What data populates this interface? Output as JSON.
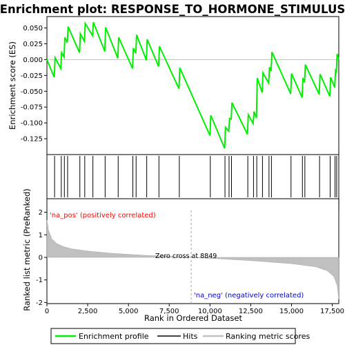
{
  "title": "Enrichment plot: RESPONSE_TO_HORMONE_STIMULUS",
  "colors": {
    "enrichment_line": "#00ee00",
    "hits": "#000000",
    "metric_fill": "#c0c0c0",
    "pos_label": "#ff0000",
    "neg_label": "#0000cd",
    "zero_cross_line": "#a0a0a0"
  },
  "legend": {
    "items": [
      {
        "label": "Enrichment profile",
        "color": "#00ee00"
      },
      {
        "label": "Hits",
        "color": "#000000"
      },
      {
        "label": "Ranking metric scores",
        "color": "#c0c0c0"
      }
    ]
  },
  "chart_data": [
    {
      "type": "line",
      "name": "enrichment-profile-panel",
      "ylabel": "Enrichment score (ES)",
      "ylim": [
        -0.15,
        0.068
      ],
      "xlim": [
        0,
        17900
      ],
      "yticks": [
        0.05,
        0.025,
        0.0,
        -0.025,
        -0.05,
        -0.075,
        -0.1,
        -0.125
      ],
      "ytick_labels": [
        "0.050",
        "0.025",
        "0.000",
        "-0.025",
        "-0.050",
        "-0.075",
        "-0.100",
        "-0.125"
      ],
      "grid": false,
      "series": [
        {
          "name": "Enrichment profile",
          "x": [
            0,
            450,
            500,
            850,
            900,
            1050,
            1100,
            1250,
            1300,
            2000,
            2050,
            2300,
            2350,
            2800,
            2850,
            3550,
            3600,
            4350,
            4400,
            5250,
            5300,
            5450,
            5500,
            6100,
            6150,
            6850,
            6900,
            8100,
            8150,
            10000,
            10050,
            10900,
            10950,
            11150,
            11200,
            11300,
            11350,
            12300,
            12350,
            12650,
            12700,
            12850,
            12900,
            13200,
            13250,
            13600,
            13650,
            13750,
            13800,
            14950,
            15000,
            15650,
            15700,
            15800,
            15850,
            16700,
            16750,
            17350,
            17400,
            17650,
            17700,
            17750,
            17800,
            17900
          ],
          "y": [
            0.0,
            -0.028,
            0.003,
            -0.014,
            0.011,
            0.004,
            0.035,
            0.027,
            0.052,
            0.011,
            0.041,
            0.029,
            0.057,
            0.038,
            0.059,
            0.013,
            0.051,
            0.002,
            0.035,
            -0.014,
            0.018,
            0.01,
            0.039,
            -0.001,
            0.032,
            -0.011,
            0.021,
            -0.046,
            -0.013,
            -0.12,
            -0.088,
            -0.14,
            -0.107,
            -0.113,
            -0.093,
            -0.094,
            -0.068,
            -0.118,
            -0.087,
            -0.101,
            -0.082,
            -0.092,
            -0.029,
            -0.052,
            -0.021,
            -0.037,
            -0.012,
            -0.018,
            0.012,
            -0.054,
            -0.022,
            -0.06,
            -0.029,
            -0.036,
            -0.008,
            -0.055,
            -0.023,
            -0.058,
            -0.028,
            -0.044,
            -0.017,
            -0.019,
            0.009,
            0.0
          ]
        }
      ]
    },
    {
      "type": "scatter",
      "name": "hits-panel",
      "series": [
        {
          "name": "Hits",
          "x": [
            470,
            880,
            1070,
            1270,
            2020,
            2320,
            2820,
            3570,
            4370,
            5270,
            5470,
            6120,
            6870,
            8120,
            10020,
            10920,
            11170,
            11320,
            12320,
            12670,
            12870,
            13220,
            13620,
            13770,
            14970,
            15670,
            15820,
            16720,
            17370,
            17670,
            17770
          ]
        }
      ]
    },
    {
      "type": "area",
      "name": "ranked-metric-panel",
      "xlabel": "Rank in Ordered Dataset",
      "ylabel": "Ranked list metric (PreRanked)",
      "ylim": [
        -2.05,
        2.6
      ],
      "xlim": [
        0,
        17900
      ],
      "xticks": [
        0,
        2500,
        5000,
        7500,
        10000,
        12500,
        15000,
        17500
      ],
      "xtick_labels": [
        "0",
        "2,500",
        "5,000",
        "7,500",
        "10,000",
        "12,500",
        "15,000",
        "17,500"
      ],
      "yticks": [
        2,
        1,
        0,
        -1,
        -2
      ],
      "ytick_labels": [
        "2",
        "1",
        "0",
        "-1",
        "-2"
      ],
      "series": [
        {
          "name": "Ranking metric scores",
          "x": [
            0,
            100,
            300,
            600,
            1000,
            1500,
            2500,
            4000,
            6000,
            8849,
            11000,
            13000,
            15000,
            16500,
            17200,
            17600,
            17800,
            17900
          ],
          "y": [
            1.65,
            1.2,
            0.82,
            0.62,
            0.48,
            0.38,
            0.28,
            0.18,
            0.09,
            0.0,
            -0.08,
            -0.17,
            -0.28,
            -0.42,
            -0.6,
            -0.85,
            -1.25,
            -1.85
          ]
        }
      ],
      "annotations": {
        "zero_cross": "Zero cross at 8849",
        "zero_cross_x": 8849,
        "pos_label": "'na_pos' (positively correlated)",
        "neg_label": "'na_neg' (negatively correlated)"
      }
    }
  ]
}
